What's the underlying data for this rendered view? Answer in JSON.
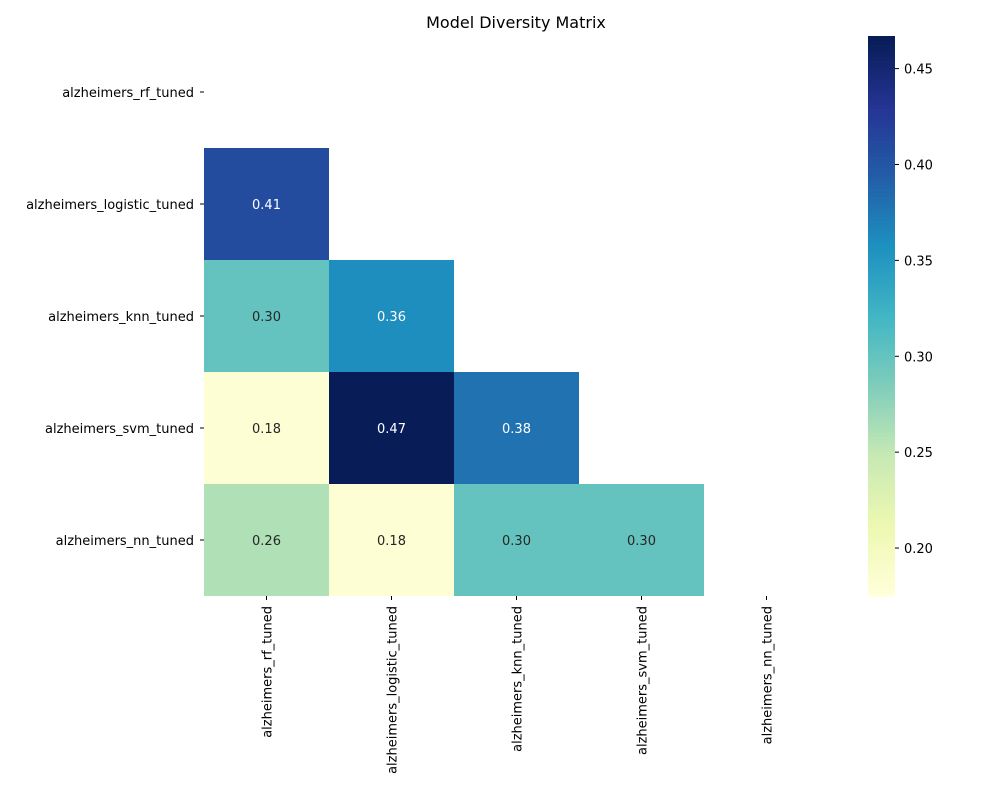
{
  "chart_data": {
    "type": "heatmap",
    "title": "Model Diversity Matrix",
    "xlabel": "",
    "ylabel": "",
    "rows": [
      "alzheimers_rf_tuned",
      "alzheimers_logistic_tuned",
      "alzheimers_knn_tuned",
      "alzheimers_svm_tuned",
      "alzheimers_nn_tuned"
    ],
    "cols": [
      "alzheimers_rf_tuned",
      "alzheimers_logistic_tuned",
      "alzheimers_knn_tuned",
      "alzheimers_svm_tuned",
      "alzheimers_nn_tuned"
    ],
    "values": [
      [
        null,
        null,
        null,
        null,
        null
      ],
      [
        0.41,
        null,
        null,
        null,
        null
      ],
      [
        0.3,
        0.36,
        null,
        null,
        null
      ],
      [
        0.18,
        0.47,
        0.38,
        null,
        null
      ],
      [
        0.26,
        0.18,
        0.3,
        0.3,
        null
      ]
    ],
    "mask": "upper-triangle-including-diagonal",
    "colormap": "YlGnBu",
    "colorbar": {
      "range": [
        0.175,
        0.467
      ],
      "ticks": [
        0.2,
        0.25,
        0.3,
        0.35,
        0.4,
        0.45
      ],
      "tick_labels": [
        "0.20",
        "0.25",
        "0.30",
        "0.35",
        "0.40",
        "0.45"
      ],
      "placement": "right"
    },
    "annotation_format": "0.00"
  }
}
